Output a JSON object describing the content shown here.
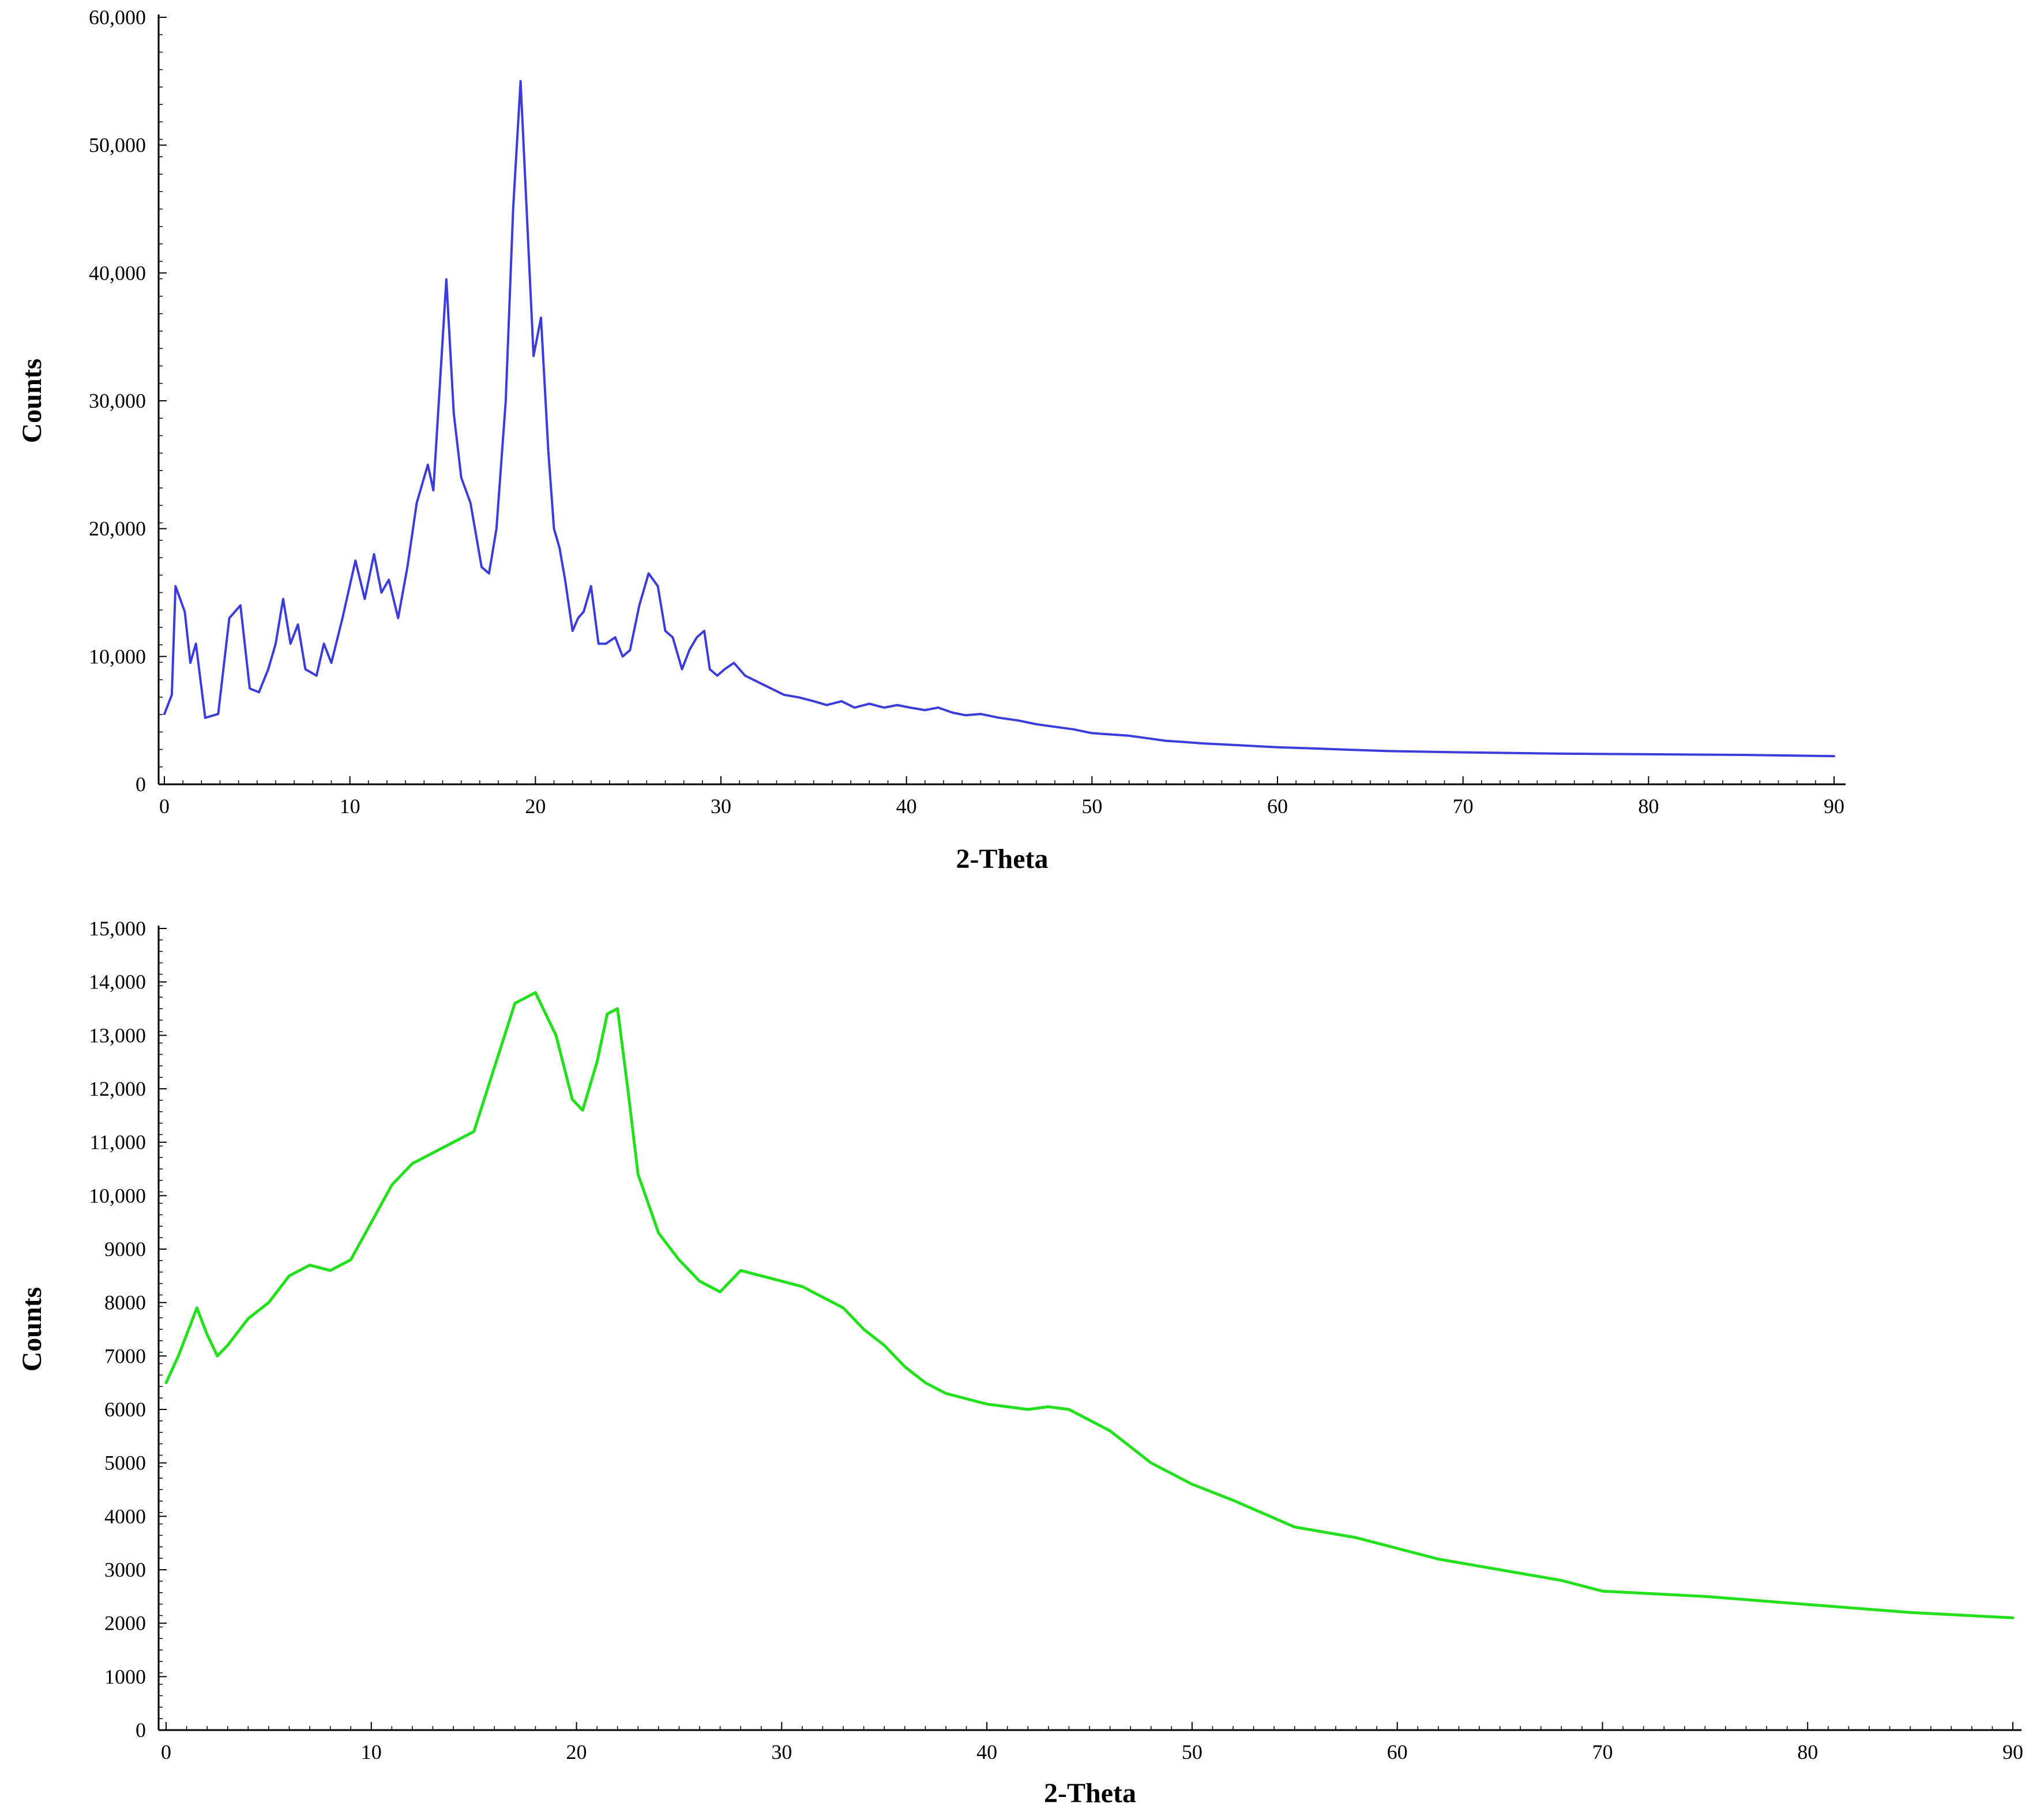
{
  "chart_data": [
    {
      "type": "line",
      "xlabel": "2-Theta",
      "ylabel": "Counts",
      "xlim": [
        0,
        90
      ],
      "ylim": [
        0,
        60000
      ],
      "x_ticks": [
        0,
        10,
        20,
        30,
        40,
        50,
        60,
        70,
        80,
        90
      ],
      "x_tick_labels": [
        "0",
        "10",
        "20",
        "30",
        "40",
        "50",
        "60",
        "70",
        "80",
        "90"
      ],
      "y_ticks": [
        0,
        10000,
        20000,
        30000,
        40000,
        50000,
        60000
      ],
      "y_tick_labels": [
        "0",
        "10,000",
        "20,000",
        "30,000",
        "40,000",
        "50,000",
        "60,000"
      ],
      "grid": false,
      "color": "#3c3cdc",
      "series": [
        {
          "x": [
            0,
            0.4,
            0.6,
            1.1,
            1.4,
            1.7,
            2.2,
            2.9,
            3.5,
            4.1,
            4.6,
            5.1,
            5.6,
            6.0,
            6.4,
            6.8,
            7.2,
            7.6,
            8.2,
            8.6,
            9.0,
            9.6,
            10.3,
            10.8,
            11.3,
            11.7,
            12.1,
            12.6,
            13.1,
            13.6,
            14.2,
            14.5,
            15.2,
            15.6,
            16.0,
            16.5,
            17.1,
            17.5,
            17.9,
            18.4,
            18.8,
            19.2,
            19.9,
            20.3,
            20.7,
            21.0,
            21.3,
            21.6,
            22.0,
            22.3,
            22.6,
            23.0,
            23.4,
            23.8,
            24.3,
            24.7,
            25.1,
            25.6,
            26.1,
            26.6,
            27.0,
            27.4,
            27.9,
            28.3,
            28.7,
            29.1,
            29.4,
            29.8,
            30.2,
            30.7,
            31.3,
            32.0,
            32.7,
            33.4,
            34.2,
            35.0,
            35.7,
            36.5,
            37.2,
            38.0,
            38.8,
            39.5,
            40.2,
            41.0,
            41.7,
            42.5,
            43.2,
            44.0,
            45.0,
            46.0,
            47.0,
            48.0,
            49.0,
            50.0,
            51.0,
            52.0,
            53.0,
            54.0,
            55.0,
            56.0,
            58.0,
            60.0,
            62.0,
            64.0,
            66.0,
            68.0,
            70.0,
            75.0,
            80.0,
            85.0,
            90.0
          ],
          "y": [
            5500,
            7000,
            15500,
            13500,
            9500,
            11000,
            5200,
            5500,
            13000,
            14000,
            7500,
            7200,
            9000,
            11000,
            14500,
            11000,
            12500,
            9000,
            8500,
            11000,
            9500,
            13000,
            17500,
            14500,
            18000,
            15000,
            16000,
            13000,
            17000,
            22000,
            25000,
            23000,
            39500,
            29000,
            24000,
            22000,
            17000,
            16500,
            20000,
            30000,
            45000,
            55000,
            33500,
            36500,
            26000,
            20000,
            18500,
            16000,
            12000,
            13000,
            13500,
            15500,
            11000,
            11000,
            11500,
            10000,
            10500,
            14000,
            16500,
            15500,
            12000,
            11500,
            9000,
            10500,
            11500,
            12000,
            9000,
            8500,
            9000,
            9500,
            8500,
            8000,
            7500,
            7000,
            6800,
            6500,
            6200,
            6500,
            6000,
            6300,
            6000,
            6200,
            6000,
            5800,
            6000,
            5600,
            5400,
            5500,
            5200,
            5000,
            4700,
            4500,
            4300,
            4000,
            3900,
            3800,
            3600,
            3400,
            3300,
            3200,
            3050,
            2900,
            2800,
            2700,
            2600,
            2550,
            2500,
            2400,
            2350,
            2300,
            2200
          ]
        }
      ]
    },
    {
      "type": "line",
      "xlabel": "2-Theta",
      "ylabel": "Counts",
      "xlim": [
        0,
        90
      ],
      "ylim": [
        0,
        15000
      ],
      "x_ticks": [
        0,
        10,
        20,
        30,
        40,
        50,
        60,
        70,
        80,
        90
      ],
      "x_tick_labels": [
        "0",
        "10",
        "20",
        "30",
        "40",
        "50",
        "60",
        "70",
        "80",
        "90"
      ],
      "y_ticks": [
        0,
        1000,
        2000,
        3000,
        4000,
        5000,
        6000,
        7000,
        8000,
        9000,
        10000,
        11000,
        12000,
        13000,
        14000,
        15000
      ],
      "y_tick_labels": [
        "0",
        "1000",
        "2000",
        "3000",
        "4000",
        "5000",
        "6000",
        "7000",
        "8000",
        "9000",
        "10,000",
        "11,000",
        "12,000",
        "13,000",
        "14,000",
        "15,000"
      ],
      "grid": false,
      "color": "#22e01c",
      "series": [
        {
          "x": [
            0,
            0.6,
            1.5,
            2.0,
            2.5,
            3.0,
            4.0,
            5.0,
            6.0,
            7.0,
            8.0,
            9.0,
            10.0,
            11.0,
            12.0,
            13.5,
            15.0,
            16.0,
            17.0,
            18.0,
            19.0,
            19.8,
            20.3,
            21.0,
            21.5,
            22.0,
            22.5,
            23.0,
            24.0,
            25.0,
            26.0,
            27.0,
            28.0,
            29.0,
            30.0,
            31.0,
            32.0,
            33.0,
            34.0,
            35.0,
            36.0,
            37.0,
            38.0,
            39.0,
            40.0,
            41.0,
            42.0,
            43.0,
            44.0,
            45.0,
            46.0,
            47.0,
            48.0,
            50.0,
            52.0,
            55.0,
            58.0,
            60.0,
            62.0,
            65.0,
            68.0,
            70.0,
            75.0,
            80.0,
            85.0,
            90.0
          ],
          "y": [
            6500,
            7000,
            7900,
            7400,
            7000,
            7200,
            7700,
            8000,
            8500,
            8700,
            8600,
            8800,
            9500,
            10200,
            10600,
            10900,
            11200,
            12400,
            13600,
            13800,
            13000,
            11800,
            11600,
            12500,
            13400,
            13500,
            12000,
            10400,
            9300,
            8800,
            8400,
            8200,
            8600,
            8500,
            8400,
            8300,
            8100,
            7900,
            7500,
            7200,
            6800,
            6500,
            6300,
            6200,
            6100,
            6050,
            6000,
            6050,
            6000,
            5800,
            5600,
            5300,
            5000,
            4600,
            4300,
            3800,
            3600,
            3400,
            3200,
            3000,
            2800,
            2600,
            2500,
            2350,
            2200,
            2100
          ]
        }
      ]
    }
  ]
}
